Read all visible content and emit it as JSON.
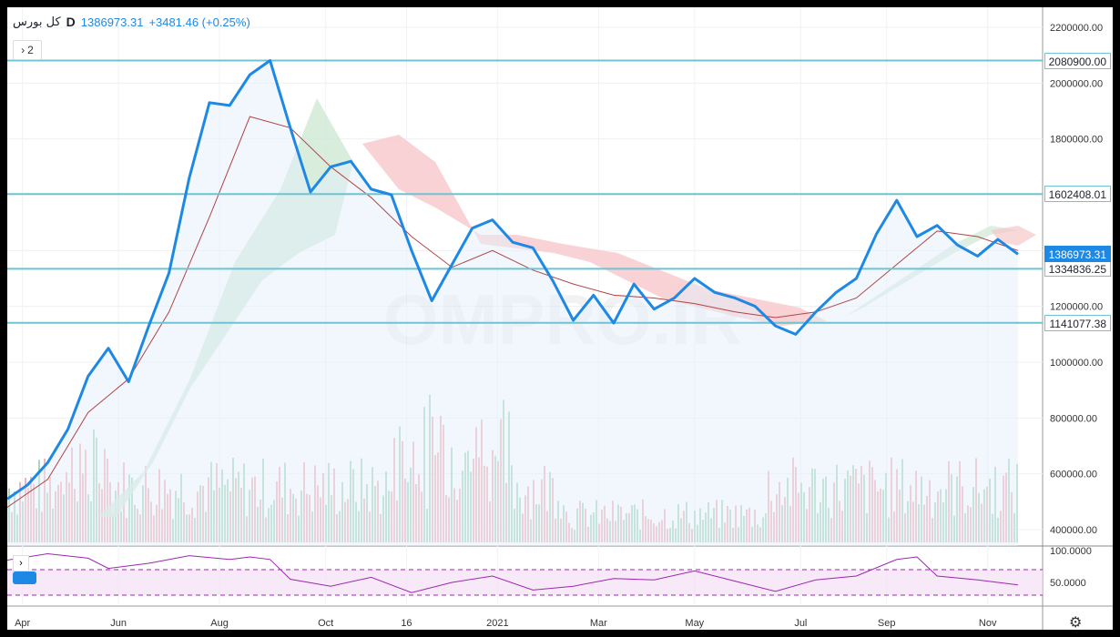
{
  "legend": {
    "symbol": "کل بورس",
    "timeframe": "D",
    "price": "1386973.31",
    "change": "+3481.46 (+0.25%)"
  },
  "collapse_count": "2",
  "watermark": "OMPRO.IR",
  "colors": {
    "price_line": "#1e88e5",
    "base_line": "#b04545",
    "cloud_bull": "#cfe8d4",
    "cloud_bear": "#f7c7cb",
    "hline": "#6cc4d4",
    "vol_up": "#a8d9bb",
    "vol_down": "#f2b3b9",
    "rsi_line": "#9c27b0",
    "rsi_band": "#f3e0f3"
  },
  "chart_data": [
    {
      "type": "line",
      "title": "کل بورس",
      "timeframe": "D",
      "x_ticks": [
        "Apr",
        "Jun",
        "Aug",
        "Oct",
        "16",
        "2021",
        "Mar",
        "May",
        "Jul",
        "Sep",
        "Nov"
      ],
      "y_ticks": [
        "2200000.00",
        "2000000.00",
        "1800000.00",
        "1600000.00",
        "1200000.00",
        "1000000.00",
        "800000.00",
        "600000.00",
        "400000.00"
      ],
      "ylim": [
        360000,
        2230000
      ],
      "horizontal_levels": [
        {
          "label": "2080900.00",
          "value": 2080900
        },
        {
          "label": "1602408.01",
          "value": 1602408.01
        },
        {
          "label": "1334836.25",
          "value": 1334836.25
        },
        {
          "label": "1141077.38",
          "value": 1141077.38
        }
      ],
      "last_price": {
        "label": "1386973.31",
        "value": 1386973.31
      },
      "series": [
        {
          "name": "کل بورس",
          "x": [
            0,
            2,
            4,
            6,
            8,
            10,
            12,
            14,
            16,
            18,
            20,
            22,
            24,
            26,
            28,
            30,
            32,
            34,
            36,
            38,
            40,
            42,
            44,
            46,
            48,
            50,
            52,
            54,
            56,
            58,
            60,
            62,
            64,
            66,
            68,
            70,
            72,
            74,
            76,
            78,
            80,
            82,
            84,
            86,
            88,
            90,
            92,
            94,
            96,
            98,
            100
          ],
          "values": [
            510000,
            560000,
            640000,
            760000,
            950000,
            1050000,
            930000,
            1130000,
            1320000,
            1660000,
            1930000,
            1920000,
            2030000,
            2080900,
            1840000,
            1610000,
            1700000,
            1720000,
            1620000,
            1600000,
            1400000,
            1220000,
            1350000,
            1480000,
            1510000,
            1430000,
            1410000,
            1290000,
            1150000,
            1240000,
            1140000,
            1280000,
            1190000,
            1230000,
            1300000,
            1250000,
            1230000,
            1200000,
            1130000,
            1100000,
            1180000,
            1250000,
            1300000,
            1460000,
            1580000,
            1450000,
            1490000,
            1420000,
            1380000,
            1440000,
            1386973
          ]
        },
        {
          "name": "base",
          "x": [
            0,
            4,
            8,
            12,
            16,
            20,
            24,
            28,
            32,
            36,
            40,
            44,
            48,
            52,
            56,
            60,
            64,
            68,
            72,
            76,
            80,
            84,
            88,
            92,
            96,
            100
          ],
          "values": [
            480000,
            580000,
            820000,
            940000,
            1180000,
            1520000,
            1880000,
            1840000,
            1700000,
            1590000,
            1450000,
            1340000,
            1400000,
            1330000,
            1280000,
            1240000,
            1230000,
            1210000,
            1180000,
            1160000,
            1180000,
            1230000,
            1350000,
            1470000,
            1450000,
            1400000
          ]
        }
      ]
    },
    {
      "type": "bar",
      "title": "Volume",
      "values_note": "volume histogram (no scale printed)"
    },
    {
      "type": "line",
      "title": "RSI",
      "y_ticks": [
        "100.0000",
        "50.0000"
      ],
      "ylim": [
        0,
        100
      ],
      "band": [
        30,
        70
      ],
      "series": [
        {
          "name": "RSI",
          "x": [
            0,
            4,
            8,
            10,
            14,
            18,
            22,
            24,
            26,
            28,
            32,
            36,
            40,
            44,
            48,
            52,
            56,
            60,
            64,
            68,
            72,
            76,
            80,
            84,
            88,
            90,
            92,
            96,
            100
          ],
          "values": [
            85,
            95,
            88,
            72,
            80,
            92,
            86,
            90,
            86,
            55,
            44,
            58,
            34,
            50,
            60,
            38,
            44,
            56,
            54,
            68,
            52,
            36,
            54,
            60,
            86,
            90,
            60,
            54,
            46
          ]
        }
      ]
    }
  ]
}
